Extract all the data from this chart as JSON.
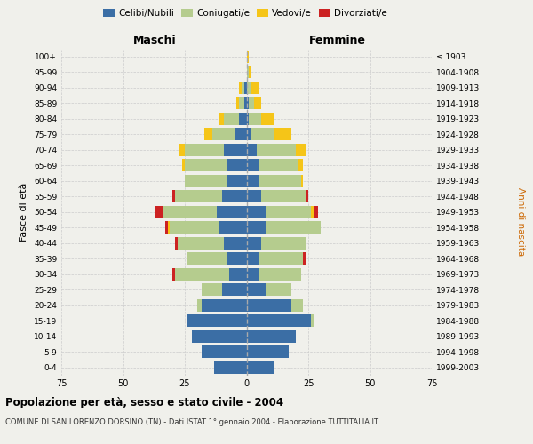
{
  "age_groups": [
    "0-4",
    "5-9",
    "10-14",
    "15-19",
    "20-24",
    "25-29",
    "30-34",
    "35-39",
    "40-44",
    "45-49",
    "50-54",
    "55-59",
    "60-64",
    "65-69",
    "70-74",
    "75-79",
    "80-84",
    "85-89",
    "90-94",
    "95-99",
    "100+"
  ],
  "birth_years": [
    "1999-2003",
    "1994-1998",
    "1989-1993",
    "1984-1988",
    "1979-1983",
    "1974-1978",
    "1969-1973",
    "1964-1968",
    "1959-1963",
    "1954-1958",
    "1949-1953",
    "1944-1948",
    "1939-1943",
    "1934-1938",
    "1929-1933",
    "1924-1928",
    "1919-1923",
    "1914-1918",
    "1909-1913",
    "1904-1908",
    "≤ 1903"
  ],
  "colors": {
    "celibi": "#3b6ea5",
    "coniugati": "#b5cc8e",
    "vedovi": "#f5c518",
    "divorziati": "#cc2222"
  },
  "males": {
    "celibi": [
      13,
      18,
      22,
      24,
      18,
      10,
      7,
      8,
      9,
      11,
      12,
      10,
      8,
      8,
      9,
      5,
      3,
      1,
      1,
      0,
      0
    ],
    "coniugati": [
      0,
      0,
      0,
      0,
      2,
      8,
      22,
      16,
      19,
      20,
      22,
      19,
      17,
      17,
      16,
      9,
      6,
      2,
      1,
      0,
      0
    ],
    "vedovi": [
      0,
      0,
      0,
      0,
      0,
      0,
      0,
      0,
      0,
      1,
      0,
      0,
      0,
      1,
      2,
      3,
      2,
      1,
      1,
      0,
      0
    ],
    "divorziati": [
      0,
      0,
      0,
      0,
      0,
      0,
      1,
      0,
      1,
      1,
      3,
      1,
      0,
      0,
      0,
      0,
      0,
      0,
      0,
      0,
      0
    ]
  },
  "females": {
    "celibi": [
      11,
      17,
      20,
      26,
      18,
      8,
      5,
      5,
      6,
      8,
      8,
      6,
      5,
      5,
      4,
      2,
      1,
      1,
      0,
      0,
      0
    ],
    "coniugati": [
      0,
      0,
      0,
      1,
      5,
      10,
      17,
      18,
      18,
      22,
      18,
      18,
      17,
      16,
      16,
      9,
      5,
      2,
      2,
      1,
      0
    ],
    "vedovi": [
      0,
      0,
      0,
      0,
      0,
      0,
      0,
      0,
      0,
      0,
      1,
      0,
      1,
      2,
      4,
      7,
      5,
      3,
      3,
      1,
      1
    ],
    "divorziati": [
      0,
      0,
      0,
      0,
      0,
      0,
      0,
      1,
      0,
      0,
      2,
      1,
      0,
      0,
      0,
      0,
      0,
      0,
      0,
      0,
      0
    ]
  },
  "xlim": 75,
  "title": "Popolazione per età, sesso e stato civile - 2004",
  "subtitle": "COMUNE DI SAN LORENZO DORSINO (TN) - Dati ISTAT 1° gennaio 2004 - Elaborazione TUTTITALIA.IT",
  "ylabel": "Fasce di età",
  "right_label": "Anni di nascita",
  "maschi_label": "Maschi",
  "femmine_label": "Femmine",
  "bg_color": "#f0f0eb",
  "plot_bg": "#f0f0eb",
  "grid_color": "#cccccc"
}
